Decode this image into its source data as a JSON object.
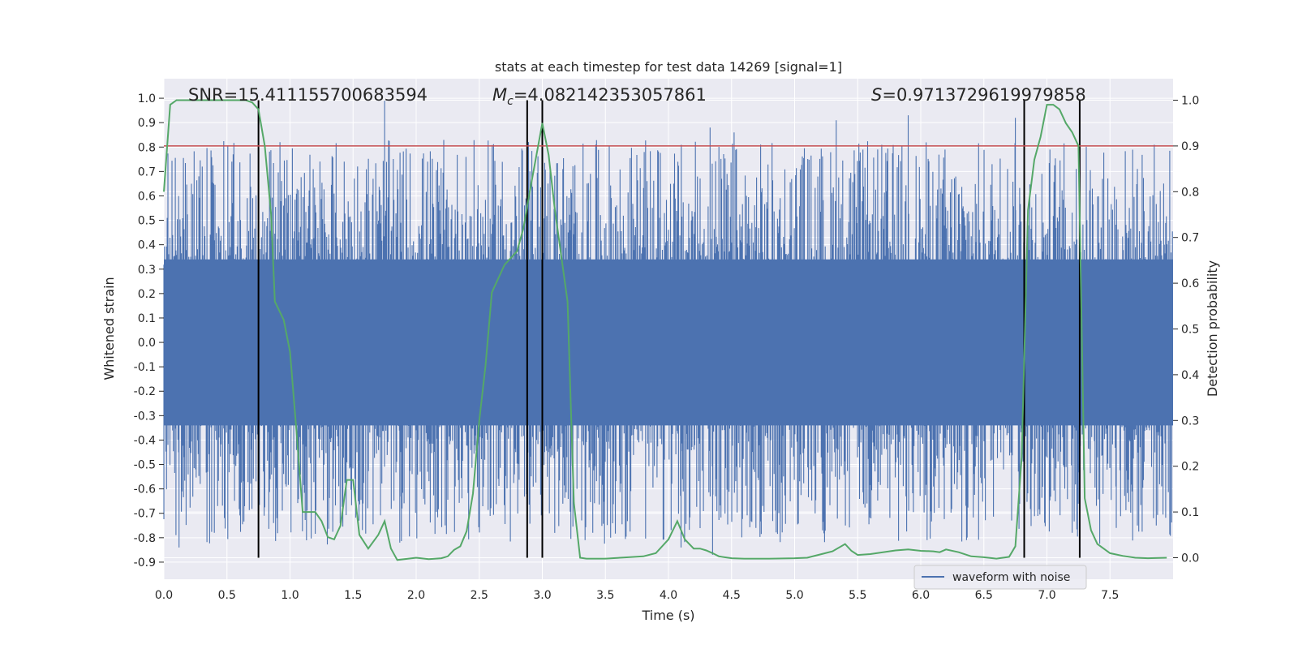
{
  "chart_data": {
    "type": "line",
    "title": "stats at each timestep for test data 14269 [signal=1]",
    "xlabel": "Time (s)",
    "ylabel": "Whitened strain",
    "y2label": "Detection probability",
    "xlim": [
      0.0,
      8.0
    ],
    "ylim": [
      -0.97,
      1.08
    ],
    "y2lim": [
      -0.047,
      1.047
    ],
    "x_ticks": [
      "0.0",
      "0.5",
      "1.0",
      "1.5",
      "2.0",
      "2.5",
      "3.0",
      "3.5",
      "4.0",
      "4.5",
      "5.0",
      "5.5",
      "6.0",
      "6.5",
      "7.0",
      "7.5"
    ],
    "y_ticks": [
      "1.0",
      "0.9",
      "0.8",
      "0.7",
      "0.6",
      "0.5",
      "0.4",
      "0.3",
      "0.2",
      "0.1",
      "0.0",
      "-0.1",
      "-0.2",
      "-0.3",
      "-0.4",
      "-0.5",
      "-0.6",
      "-0.7",
      "-0.8",
      "-0.9"
    ],
    "y2_ticks": [
      "1.0",
      "0.9",
      "0.8",
      "0.7",
      "0.6",
      "0.5",
      "0.4",
      "0.3",
      "0.2",
      "0.1",
      "0.0"
    ],
    "annotations": {
      "snr": "SNR=15.411155700683594",
      "mc_symbol": "M",
      "mc_sub": "c",
      "mc_value": "=4.082142353057861",
      "s_symbol": "S",
      "s_value": "=0.9713729619979858"
    },
    "legend": {
      "label": "waveform with noise",
      "position": "bottom-right"
    },
    "threshold": {
      "y2": 0.9,
      "color": "#c44e52"
    },
    "detection_markers_x": [
      0.75,
      2.88,
      3.0,
      6.82,
      7.26
    ],
    "colors": {
      "strain": "#4c72b0",
      "probability": "#55a868",
      "background": "#eaeaf2",
      "grid": "#ffffff",
      "marker": "#000000"
    },
    "series": [
      {
        "name": "waveform with noise",
        "axis": "left",
        "style": "dense noise, core band about ±0.35, peaks up to ±0.9",
        "peaks": [
          {
            "x": 0.12,
            "y": -0.84
          },
          {
            "x": 0.4,
            "y": -0.78
          },
          {
            "x": 0.92,
            "y": 0.82
          },
          {
            "x": 1.75,
            "y": 0.99
          },
          {
            "x": 1.87,
            "y": -0.82
          },
          {
            "x": 3.4,
            "y": -0.78
          },
          {
            "x": 4.1,
            "y": -0.84
          },
          {
            "x": 4.35,
            "y": -0.87
          },
          {
            "x": 4.33,
            "y": 0.88
          },
          {
            "x": 4.52,
            "y": 0.86
          },
          {
            "x": 5.33,
            "y": 0.91
          },
          {
            "x": 5.9,
            "y": 0.93
          },
          {
            "x": 6.05,
            "y": -0.81
          },
          {
            "x": 6.75,
            "y": 0.92
          },
          {
            "x": 7.2,
            "y": -0.78
          },
          {
            "x": 7.55,
            "y": -0.76
          }
        ]
      },
      {
        "name": "detection probability",
        "axis": "right",
        "x": [
          0.0,
          0.05,
          0.1,
          0.2,
          0.3,
          0.4,
          0.5,
          0.6,
          0.65,
          0.7,
          0.75,
          0.8,
          0.85,
          0.88,
          0.95,
          1.0,
          1.05,
          1.1,
          1.2,
          1.25,
          1.3,
          1.35,
          1.4,
          1.45,
          1.5,
          1.55,
          1.62,
          1.7,
          1.75,
          1.8,
          1.85,
          2.0,
          2.1,
          2.2,
          2.25,
          2.3,
          2.35,
          2.4,
          2.45,
          2.5,
          2.55,
          2.6,
          2.7,
          2.8,
          2.85,
          2.9,
          3.0,
          3.05,
          3.1,
          3.15,
          3.2,
          3.25,
          3.3,
          3.35,
          3.5,
          3.8,
          3.9,
          4.0,
          4.07,
          4.13,
          4.2,
          4.25,
          4.3,
          4.35,
          4.4,
          4.5,
          4.6,
          4.8,
          5.0,
          5.1,
          5.3,
          5.4,
          5.45,
          5.5,
          5.6,
          5.8,
          5.9,
          6.0,
          6.1,
          6.15,
          6.2,
          6.3,
          6.4,
          6.5,
          6.6,
          6.7,
          6.75,
          6.8,
          6.85,
          6.9,
          6.95,
          7.0,
          7.05,
          7.1,
          7.15,
          7.2,
          7.25,
          7.3,
          7.35,
          7.4,
          7.5,
          7.6,
          7.7,
          7.8,
          7.95
        ],
        "y": [
          0.8,
          0.99,
          1.0,
          1.0,
          1.0,
          1.0,
          1.0,
          1.0,
          1.0,
          0.995,
          0.98,
          0.9,
          0.75,
          0.56,
          0.52,
          0.45,
          0.28,
          0.1,
          0.1,
          0.08,
          0.045,
          0.04,
          0.07,
          0.17,
          0.17,
          0.05,
          0.02,
          0.05,
          0.08,
          0.02,
          -0.005,
          0.0,
          -0.003,
          -0.001,
          0.003,
          0.017,
          0.025,
          0.058,
          0.14,
          0.3,
          0.42,
          0.58,
          0.64,
          0.67,
          0.72,
          0.8,
          0.95,
          0.88,
          0.76,
          0.66,
          0.56,
          0.12,
          0.0,
          -0.002,
          -0.002,
          0.003,
          0.01,
          0.04,
          0.08,
          0.04,
          0.02,
          0.02,
          0.016,
          0.01,
          0.003,
          -0.001,
          -0.002,
          -0.002,
          -0.001,
          0.0,
          0.014,
          0.03,
          0.015,
          0.006,
          0.008,
          0.016,
          0.018,
          0.015,
          0.014,
          0.012,
          0.018,
          0.012,
          0.003,
          0.001,
          -0.002,
          0.002,
          0.025,
          0.22,
          0.76,
          0.87,
          0.92,
          0.99,
          0.99,
          0.98,
          0.95,
          0.93,
          0.9,
          0.13,
          0.06,
          0.03,
          0.01,
          0.004,
          0.0,
          -0.001,
          0.0
        ]
      }
    ]
  }
}
